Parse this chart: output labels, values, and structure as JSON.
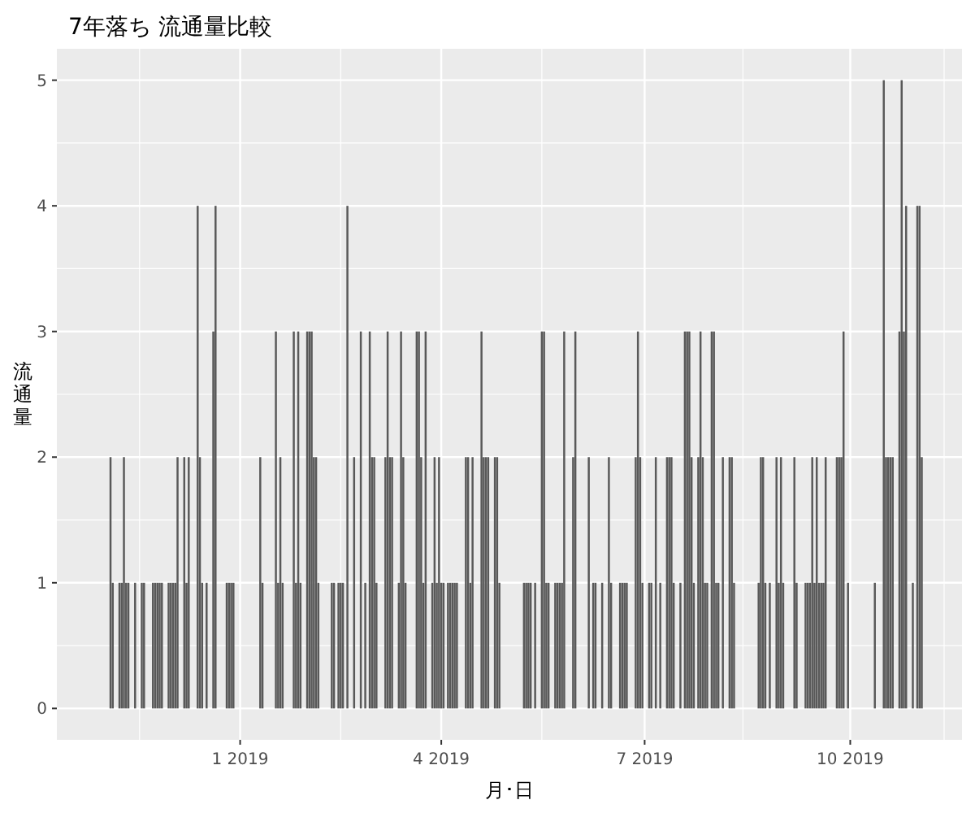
{
  "chart_data": {
    "type": "bar",
    "title": "7年落ち 流通量比較",
    "xlabel": "月･日",
    "ylabel": "流通量",
    "color": "#595959",
    "grid": true,
    "xlim": [
      "2018-10-11",
      "2019-11-20"
    ],
    "ylim": [
      -0.25,
      5.25
    ],
    "yticks": [
      0,
      1,
      2,
      3,
      4,
      5
    ],
    "xticks": [
      {
        "value": "2019-01-01",
        "label": "1 2019"
      },
      {
        "value": "2019-04-01",
        "label": "4 2019"
      },
      {
        "value": "2019-07-01",
        "label": "7 2019"
      },
      {
        "value": "2019-10-01",
        "label": "10 2019"
      }
    ],
    "x": [
      "2018-11-04",
      "2018-11-05",
      "2018-11-08",
      "2018-11-09",
      "2018-11-10",
      "2018-11-11",
      "2018-11-12",
      "2018-11-15",
      "2018-11-18",
      "2018-11-19",
      "2018-11-23",
      "2018-11-24",
      "2018-11-25",
      "2018-11-26",
      "2018-11-27",
      "2018-11-30",
      "2018-12-01",
      "2018-12-02",
      "2018-12-03",
      "2018-12-04",
      "2018-12-07",
      "2018-12-08",
      "2018-12-09",
      "2018-12-13",
      "2018-12-14",
      "2018-12-15",
      "2018-12-17",
      "2018-12-20",
      "2018-12-21",
      "2018-12-26",
      "2018-12-27",
      "2018-12-28",
      "2018-12-29",
      "2019-01-10",
      "2019-01-11",
      "2019-01-17",
      "2019-01-18",
      "2019-01-19",
      "2019-01-20",
      "2019-01-25",
      "2019-01-26",
      "2019-01-27",
      "2019-01-28",
      "2019-01-31",
      "2019-02-01",
      "2019-02-02",
      "2019-02-03",
      "2019-02-04",
      "2019-02-05",
      "2019-02-11",
      "2019-02-12",
      "2019-02-14",
      "2019-02-15",
      "2019-02-16",
      "2019-02-18",
      "2019-02-21",
      "2019-02-24",
      "2019-02-26",
      "2019-02-28",
      "2019-03-01",
      "2019-03-02",
      "2019-03-03",
      "2019-03-07",
      "2019-03-08",
      "2019-03-09",
      "2019-03-10",
      "2019-03-13",
      "2019-03-14",
      "2019-03-15",
      "2019-03-16",
      "2019-03-21",
      "2019-03-22",
      "2019-03-23",
      "2019-03-24",
      "2019-03-25",
      "2019-03-28",
      "2019-03-29",
      "2019-03-30",
      "2019-03-31",
      "2019-04-01",
      "2019-04-02",
      "2019-04-04",
      "2019-04-05",
      "2019-04-06",
      "2019-04-07",
      "2019-04-08",
      "2019-04-12",
      "2019-04-13",
      "2019-04-14",
      "2019-04-15",
      "2019-04-19",
      "2019-04-20",
      "2019-04-21",
      "2019-04-22",
      "2019-04-25",
      "2019-04-26",
      "2019-04-27",
      "2019-05-08",
      "2019-05-09",
      "2019-05-10",
      "2019-05-11",
      "2019-05-13",
      "2019-05-16",
      "2019-05-17",
      "2019-05-18",
      "2019-05-19",
      "2019-05-22",
      "2019-05-23",
      "2019-05-24",
      "2019-05-25",
      "2019-05-26",
      "2019-05-30",
      "2019-05-31",
      "2019-06-06",
      "2019-06-08",
      "2019-06-09",
      "2019-06-12",
      "2019-06-15",
      "2019-06-16",
      "2019-06-20",
      "2019-06-21",
      "2019-06-22",
      "2019-06-23",
      "2019-06-27",
      "2019-06-28",
      "2019-06-29",
      "2019-06-30",
      "2019-07-03",
      "2019-07-04",
      "2019-07-06",
      "2019-07-08",
      "2019-07-11",
      "2019-07-12",
      "2019-07-13",
      "2019-07-14",
      "2019-07-17",
      "2019-07-19",
      "2019-07-20",
      "2019-07-21",
      "2019-07-22",
      "2019-07-23",
      "2019-07-25",
      "2019-07-26",
      "2019-07-27",
      "2019-07-28",
      "2019-07-29",
      "2019-07-31",
      "2019-08-01",
      "2019-08-02",
      "2019-08-03",
      "2019-08-05",
      "2019-08-08",
      "2019-08-09",
      "2019-08-10",
      "2019-08-21",
      "2019-08-22",
      "2019-08-23",
      "2019-08-24",
      "2019-08-26",
      "2019-08-29",
      "2019-08-30",
      "2019-08-31",
      "2019-09-01",
      "2019-09-06",
      "2019-09-07",
      "2019-09-11",
      "2019-09-12",
      "2019-09-13",
      "2019-09-14",
      "2019-09-15",
      "2019-09-16",
      "2019-09-17",
      "2019-09-18",
      "2019-09-19",
      "2019-09-20",
      "2019-09-25",
      "2019-09-26",
      "2019-09-27",
      "2019-09-28",
      "2019-09-30",
      "2019-10-12",
      "2019-10-16",
      "2019-10-17",
      "2019-10-18",
      "2019-10-19",
      "2019-10-20",
      "2019-10-23",
      "2019-10-24",
      "2019-10-25",
      "2019-10-26",
      "2019-10-29",
      "2019-10-31",
      "2019-11-01",
      "2019-11-02"
    ],
    "values": [
      2,
      1,
      1,
      1,
      2,
      1,
      1,
      1,
      1,
      1,
      1,
      1,
      1,
      1,
      1,
      1,
      1,
      1,
      1,
      2,
      2,
      1,
      2,
      4,
      2,
      1,
      1,
      3,
      4,
      1,
      1,
      1,
      1,
      2,
      1,
      3,
      1,
      2,
      1,
      3,
      1,
      3,
      1,
      3,
      3,
      3,
      2,
      2,
      1,
      1,
      1,
      1,
      1,
      1,
      4,
      2,
      3,
      1,
      3,
      2,
      2,
      1,
      2,
      3,
      2,
      2,
      1,
      3,
      2,
      1,
      3,
      3,
      2,
      1,
      3,
      1,
      2,
      1,
      2,
      1,
      1,
      1,
      1,
      1,
      1,
      1,
      2,
      2,
      1,
      2,
      3,
      2,
      2,
      2,
      2,
      2,
      1,
      1,
      1,
      1,
      1,
      1,
      3,
      3,
      1,
      1,
      1,
      1,
      1,
      1,
      3,
      2,
      3,
      2,
      1,
      1,
      1,
      2,
      1,
      1,
      1,
      1,
      1,
      2,
      3,
      2,
      1,
      1,
      1,
      2,
      1,
      2,
      2,
      2,
      1,
      1,
      3,
      3,
      3,
      2,
      1,
      2,
      3,
      2,
      1,
      1,
      3,
      3,
      1,
      1,
      2,
      2,
      2,
      1,
      1,
      2,
      2,
      1,
      1,
      2,
      1,
      2,
      1,
      2,
      1,
      1,
      1,
      1,
      2,
      1,
      2,
      1,
      1,
      1,
      2,
      2,
      2,
      2,
      3,
      1,
      1,
      5,
      2,
      2,
      2,
      2,
      3,
      5,
      3,
      4,
      1,
      4,
      4,
      2
    ]
  }
}
